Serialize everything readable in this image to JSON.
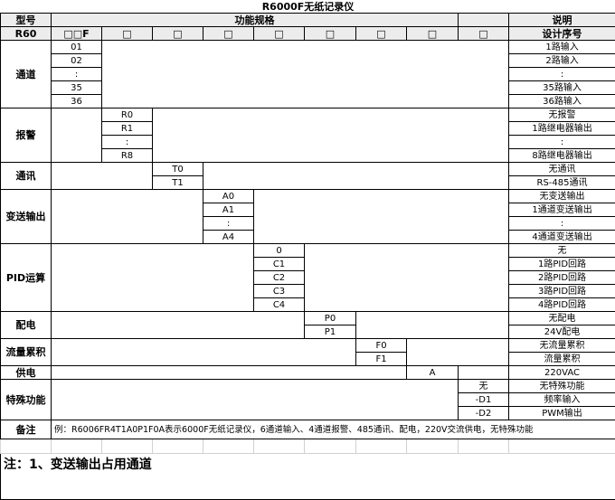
{
  "title": "R6000F无纸记录仪",
  "header": {
    "model": "型号",
    "spec": "功能规格",
    "desc": "说明",
    "model_code": "R60",
    "first_code": "□□F",
    "code_slots": [
      "□",
      "□",
      "□",
      "□",
      "□",
      "□",
      "□",
      "□"
    ],
    "design_no": "设计序号"
  },
  "groups": [
    {
      "label": "通道",
      "values": [
        "01",
        "02",
        ":",
        "35",
        "36"
      ],
      "descs": [
        "1路输入",
        "2路输入",
        ":",
        "35路输入",
        "36路输入"
      ]
    },
    {
      "label": "报警",
      "values": [
        "R0",
        "R1",
        ":",
        "R8"
      ],
      "descs": [
        "无报警",
        "1路继电器输出",
        ":",
        "8路继电器输出"
      ]
    },
    {
      "label": "通讯",
      "values": [
        "T0",
        "T1"
      ],
      "descs": [
        "无通讯",
        "RS-485通讯"
      ]
    },
    {
      "label": "变送输出",
      "values": [
        "A0",
        "A1",
        ":",
        "A4"
      ],
      "descs": [
        "无变送输出",
        "1通道变送输出",
        ":",
        "4通道变送输出"
      ]
    },
    {
      "label": "PID运算",
      "values": [
        "0",
        "C1",
        "C2",
        "C3",
        "C4"
      ],
      "descs": [
        "无",
        "1路PID回路",
        "2路PID回路",
        "3路PID回路",
        "4路PID回路"
      ]
    },
    {
      "label": "配电",
      "values": [
        "P0",
        "P1"
      ],
      "descs": [
        "无配电",
        "24V配电"
      ]
    },
    {
      "label": "流量累积",
      "values": [
        "F0",
        "F1"
      ],
      "descs": [
        "无流量累积",
        "流量累积"
      ]
    },
    {
      "label": "供电",
      "values": [
        "A"
      ],
      "descs": [
        "220VAC"
      ]
    },
    {
      "label": "特殊功能",
      "values": [
        "无",
        "-D1",
        "-D2"
      ],
      "descs": [
        "无特殊功能",
        "频率输入",
        "PWM输出"
      ]
    }
  ],
  "remark": {
    "label": "备注",
    "text": "例：R6006FR4T1A0P1F0A表示6000F无纸记录仪，6通道输入、4通道报警、485通讯、配电，220V交流供电，无特殊功能"
  },
  "note": "注：1、变送输出占用通道"
}
